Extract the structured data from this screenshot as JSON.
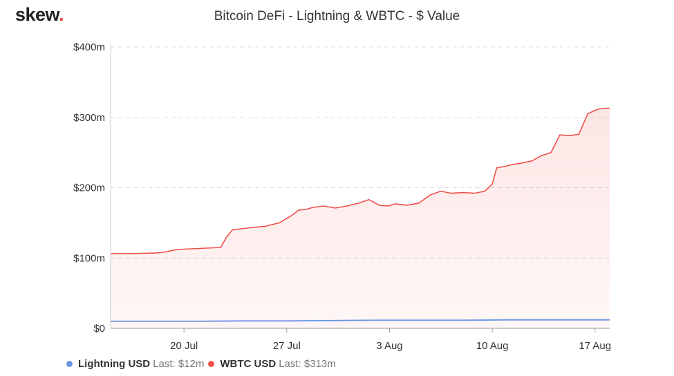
{
  "header": {
    "logo_text": "skew",
    "logo_dot": "."
  },
  "chart_data": {
    "type": "area",
    "title": "Bitcoin DeFi - Lightning & WBTC - $ Value",
    "xlabel": "",
    "ylabel": "",
    "x_range": [
      "2020-07-15",
      "2020-08-18"
    ],
    "ylim": [
      0,
      400
    ],
    "y_ticks": [
      0,
      100,
      200,
      300,
      400
    ],
    "y_tick_labels": [
      "$0",
      "$100m",
      "$200m",
      "$300m",
      "$400m"
    ],
    "x_ticks": [
      "2020-07-20",
      "2020-07-27",
      "2020-08-03",
      "2020-08-10",
      "2020-08-17"
    ],
    "x_tick_labels": [
      "20 Jul",
      "27 Jul",
      "3 Aug",
      "10 Aug",
      "17 Aug"
    ],
    "grid": "horizontal dashed",
    "legend_position": "bottom-left",
    "series": [
      {
        "name": "Lightning USD",
        "last_label": "Last: $12m",
        "color": "#6b96e6",
        "x": [
          "2020-07-15",
          "2020-07-18",
          "2020-07-21",
          "2020-07-24",
          "2020-07-27",
          "2020-07-30",
          "2020-08-02",
          "2020-08-05",
          "2020-08-08",
          "2020-08-11",
          "2020-08-14",
          "2020-08-18"
        ],
        "values": [
          10,
          10,
          10,
          10.5,
          10.5,
          11,
          11.5,
          11.5,
          11.5,
          12,
          12,
          12
        ]
      },
      {
        "name": "WBTC USD",
        "last_label": "Last: $313m",
        "color": "#f0504a",
        "x": [
          "2020-07-15",
          "2020-07-16",
          "2020-07-18",
          "2020-07-18.6",
          "2020-07-19.5",
          "2020-07-20.5",
          "2020-07-21.5",
          "2020-07-22.5",
          "2020-07-22.9",
          "2020-07-23.3",
          "2020-07-23.7",
          "2020-07-24.5",
          "2020-07-25.5",
          "2020-07-26.5",
          "2020-07-27.3",
          "2020-07-27.8",
          "2020-07-28.3",
          "2020-07-28.8",
          "2020-07-29.5",
          "2020-07-30.3",
          "2020-07-31.1",
          "2020-07-31.9",
          "2020-08-01.6",
          "2020-08-02.3",
          "2020-08-02.9",
          "2020-08-03.4",
          "2020-08-04.2",
          "2020-08-05.0",
          "2020-08-05.8",
          "2020-08-06.5",
          "2020-08-07.2",
          "2020-08-08.0",
          "2020-08-08.8",
          "2020-08-09.5",
          "2020-08-10.0",
          "2020-08-10.3",
          "2020-08-10.8",
          "2020-08-11.4",
          "2020-08-12.0",
          "2020-08-12.7",
          "2020-08-13.3",
          "2020-08-14.0",
          "2020-08-14.6",
          "2020-08-15.3",
          "2020-08-15.9",
          "2020-08-16.5",
          "2020-08-17.0",
          "2020-08-17.3",
          "2020-08-17.8",
          "2020-08-18"
        ],
        "values": [
          106,
          106,
          107,
          108,
          112,
          113,
          114,
          115,
          130,
          140,
          141,
          143,
          145,
          150,
          160,
          168,
          169,
          172,
          174,
          171,
          174,
          178,
          183,
          175,
          174,
          177,
          175,
          178,
          190,
          195,
          192,
          193,
          192,
          195,
          205,
          228,
          230,
          233,
          235,
          238,
          245,
          250,
          275,
          274,
          276,
          305,
          310,
          312,
          313,
          313
        ]
      }
    ]
  }
}
